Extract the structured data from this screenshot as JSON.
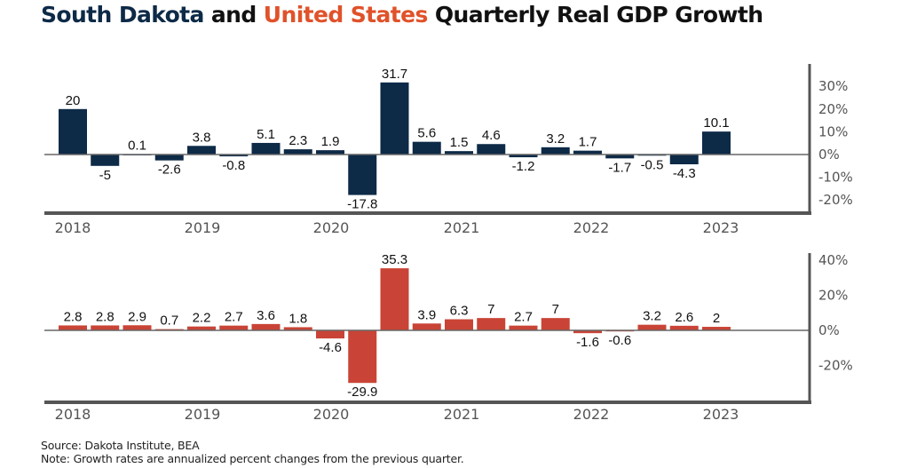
{
  "title": {
    "part1": "South Dakota",
    "part2": " and ",
    "part3": "United States",
    "part4": " Quarterly Real GDP Growth"
  },
  "colors": {
    "south_dakota": "#0d2a47",
    "united_states": "#c94436",
    "title_sd": "#0d2a47",
    "title_us": "#e0522a",
    "axis": "#555555"
  },
  "source": "Source: Dakota Institute, BEA",
  "note": "Note: Growth rates are annualized percent changes from the previous quarter.",
  "chart_data": [
    {
      "type": "bar",
      "name": "South Dakota",
      "title": "South Dakota and United States Quarterly Real GDP Growth",
      "xlabel": "",
      "ylabel": "",
      "ylim": [
        -25,
        38
      ],
      "yticks": [
        30,
        20,
        10,
        0,
        -10,
        -20
      ],
      "ytick_labels": [
        "30%",
        "20%",
        "10%",
        "0%",
        "-10%",
        "-20%"
      ],
      "x_year_labels": [
        "2018",
        "2019",
        "2020",
        "2021",
        "2022",
        "2023"
      ],
      "categories": [
        "2018Q1",
        "2018Q2",
        "2018Q3",
        "2018Q4",
        "2019Q1",
        "2019Q2",
        "2019Q3",
        "2019Q4",
        "2020Q1",
        "2020Q2",
        "2020Q3",
        "2020Q4",
        "2021Q1",
        "2021Q2",
        "2021Q3",
        "2021Q4",
        "2022Q1",
        "2022Q2",
        "2022Q3",
        "2022Q4",
        "2023Q1",
        "2023Q2"
      ],
      "values": [
        20,
        -5,
        0.1,
        -2.6,
        3.8,
        -0.8,
        5.1,
        2.3,
        1.9,
        -17.8,
        31.7,
        5.6,
        1.5,
        4.6,
        -1.2,
        3.2,
        1.7,
        -1.7,
        -0.5,
        -4.3,
        10.1,
        null
      ],
      "labels": [
        "20",
        "-5",
        "0.1",
        "-2.6",
        "3.8",
        "-0.8",
        "5.1",
        "2.3",
        "1.9",
        "-17.8",
        "31.7",
        "5.6",
        "1.5",
        "4.6",
        "-1.2",
        "3.2",
        "1.7",
        "-1.7",
        "-0.5",
        "-4.3",
        "10.1",
        ""
      ],
      "color": "#0d2a47",
      "y_axis_side": "right",
      "grid": false
    },
    {
      "type": "bar",
      "name": "United States",
      "xlabel": "",
      "ylabel": "",
      "ylim": [
        -40,
        40
      ],
      "yticks": [
        40,
        20,
        0,
        -20
      ],
      "ytick_labels": [
        "40%",
        "20%",
        "0%",
        "-20%"
      ],
      "x_year_labels": [
        "2018",
        "2019",
        "2020",
        "2021",
        "2022",
        "2023"
      ],
      "categories": [
        "2018Q1",
        "2018Q2",
        "2018Q3",
        "2018Q4",
        "2019Q1",
        "2019Q2",
        "2019Q3",
        "2019Q4",
        "2020Q1",
        "2020Q2",
        "2020Q3",
        "2020Q4",
        "2021Q1",
        "2021Q2",
        "2021Q3",
        "2021Q4",
        "2022Q1",
        "2022Q2",
        "2022Q3",
        "2022Q4",
        "2023Q1",
        "2023Q2"
      ],
      "values": [
        2.8,
        2.8,
        2.9,
        0.7,
        2.2,
        2.7,
        3.6,
        1.8,
        -4.6,
        -29.9,
        35.3,
        3.9,
        6.3,
        7,
        2.7,
        7,
        -1.6,
        -0.6,
        3.2,
        2.6,
        2,
        null
      ],
      "labels": [
        "2.8",
        "2.8",
        "2.9",
        "0.7",
        "2.2",
        "2.7",
        "3.6",
        "1.8",
        "-4.6",
        "-29.9",
        "35.3",
        "3.9",
        "6.3",
        "7",
        "2.7",
        "7",
        "-1.6",
        "-0.6",
        "3.2",
        "2.6",
        "2",
        ""
      ],
      "color": "#c94436",
      "y_axis_side": "right",
      "grid": false
    }
  ]
}
